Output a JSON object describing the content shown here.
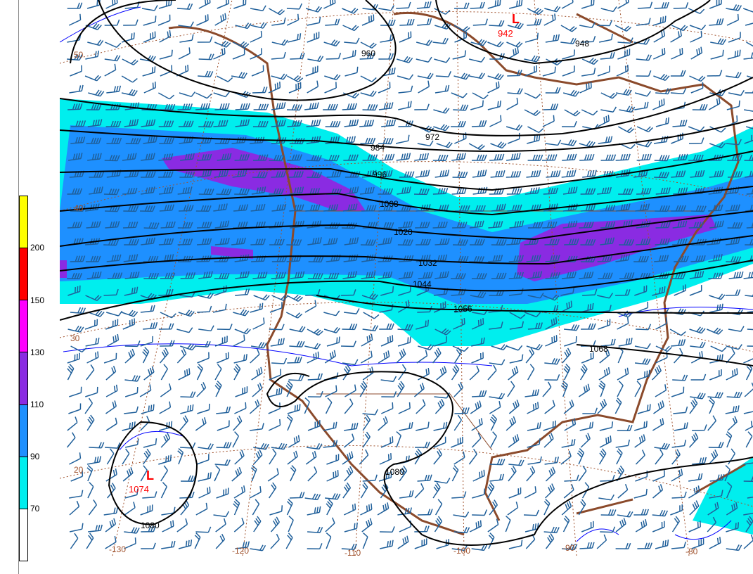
{
  "colorbar": {
    "segments": [
      {
        "color": "#ffff00",
        "label": ""
      },
      {
        "color": "#ff0000",
        "label": "200"
      },
      {
        "color": "#ff00ff",
        "label": "150"
      },
      {
        "color": "#8a2be2",
        "label": "130"
      },
      {
        "color": "#1e90ff",
        "label": "110"
      },
      {
        "color": "#00eeee",
        "label": "90"
      },
      {
        "color": "#ffffff",
        "label": "70"
      }
    ]
  },
  "map": {
    "longitude_labels": [
      "-130",
      "-120",
      "-110",
      "-100",
      "-90",
      "-80"
    ],
    "latitude_labels": [
      "50",
      "40",
      "30",
      "20"
    ],
    "contour_labels": [
      "960",
      "948",
      "972",
      "984",
      "996",
      "1008",
      "1020",
      "1032",
      "1044",
      "1056",
      "1068",
      "1080",
      "1080"
    ],
    "lows": [
      {
        "symbol": "L",
        "value": "942"
      },
      {
        "symbol": "L",
        "value": "1074"
      }
    ],
    "colors": {
      "contour": "#000000",
      "barb": "#1f5f9a",
      "coast": "#8b4a2b",
      "grid": "#a0522d",
      "isotach": "#0000ff",
      "low": "#ff0000"
    }
  }
}
